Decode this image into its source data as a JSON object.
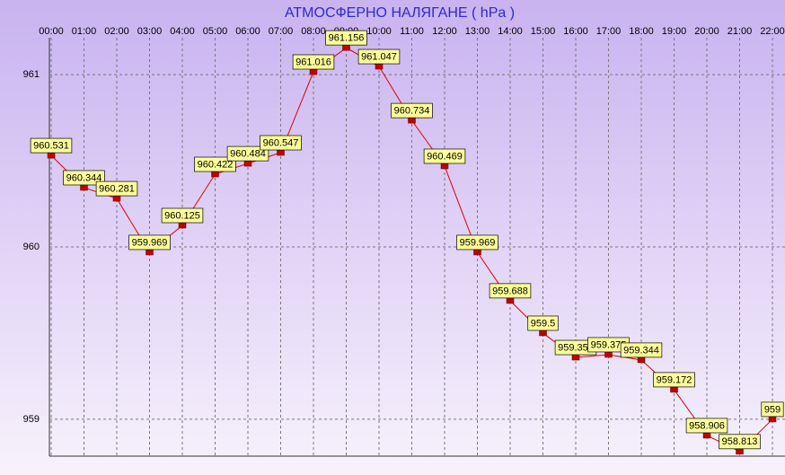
{
  "chart_data": {
    "type": "line",
    "title": "АТМОСФЕРНО НАЛЯГАНЕ  ( hPa )",
    "categories": [
      "00:00",
      "01:00",
      "02:00",
      "03:00",
      "04:00",
      "05:00",
      "06:00",
      "07:00",
      "08:00",
      "09:00",
      "10:00",
      "11:00",
      "12:00",
      "13:00",
      "14:00",
      "15:00",
      "16:00",
      "17:00",
      "18:00",
      "19:00",
      "20:00",
      "21:00",
      "22:00"
    ],
    "values": [
      960.531,
      960.344,
      960.281,
      959.969,
      960.125,
      960.422,
      960.484,
      960.547,
      961.016,
      961.156,
      961.047,
      960.734,
      960.469,
      959.969,
      959.688,
      959.5,
      959.359,
      959.375,
      959.344,
      959.172,
      958.906,
      958.813,
      959
    ],
    "color": "#e00000",
    "marker_color": "#c00000",
    "label_color": "#ffff99",
    "ylim": [
      958.786,
      961.214
    ],
    "yticks": [
      959,
      960,
      961
    ],
    "grid": true
  }
}
